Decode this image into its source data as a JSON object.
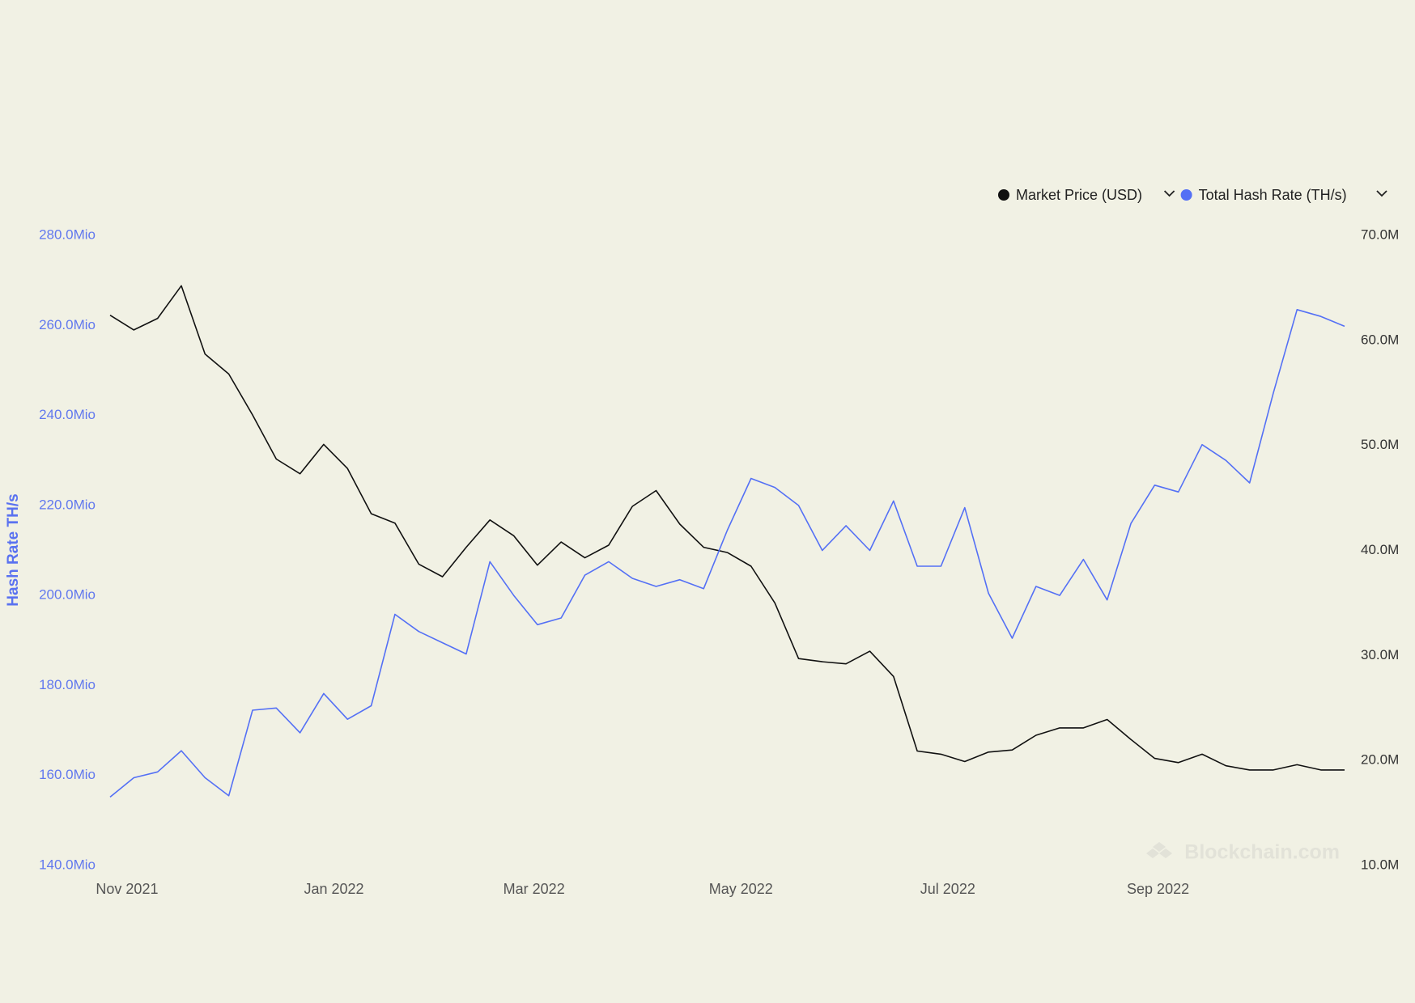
{
  "chart_data": {
    "type": "line",
    "watermark": "Blockchain.com",
    "y_label": "Hash Rate TH/s",
    "x": [
      "2021-10-27",
      "2021-11-03",
      "2021-11-10",
      "2021-11-17",
      "2021-11-24",
      "2021-12-01",
      "2021-12-08",
      "2021-12-15",
      "2021-12-22",
      "2021-12-29",
      "2022-01-05",
      "2022-01-12",
      "2022-01-19",
      "2022-01-26",
      "2022-02-02",
      "2022-02-09",
      "2022-02-16",
      "2022-02-23",
      "2022-03-02",
      "2022-03-09",
      "2022-03-16",
      "2022-03-23",
      "2022-03-30",
      "2022-04-06",
      "2022-04-13",
      "2022-04-20",
      "2022-04-27",
      "2022-05-04",
      "2022-05-11",
      "2022-05-18",
      "2022-05-25",
      "2022-06-01",
      "2022-06-08",
      "2022-06-15",
      "2022-06-22",
      "2022-06-29",
      "2022-07-06",
      "2022-07-13",
      "2022-07-20",
      "2022-07-27",
      "2022-08-03",
      "2022-08-10",
      "2022-08-17",
      "2022-08-24",
      "2022-08-31",
      "2022-09-07",
      "2022-09-14",
      "2022-09-21",
      "2022-09-28",
      "2022-10-05",
      "2022-10-12",
      "2022-10-19",
      "2022-10-26"
    ],
    "xlim": [
      "2021-10-27",
      "2022-10-26"
    ],
    "xticks": [
      {
        "value": "2021-11-01",
        "label": "Nov 2021"
      },
      {
        "value": "2022-01-01",
        "label": "Jan 2022"
      },
      {
        "value": "2022-03-01",
        "label": "Mar 2022"
      },
      {
        "value": "2022-05-01",
        "label": "May 2022"
      },
      {
        "value": "2022-07-01",
        "label": "Jul 2022"
      },
      {
        "value": "2022-09-01",
        "label": "Sep 2022"
      }
    ],
    "ylim": [
      140,
      280
    ],
    "yticks": [
      {
        "value": 140,
        "label": "140.0Mio"
      },
      {
        "value": 160,
        "label": "160.0Mio"
      },
      {
        "value": 180,
        "label": "180.0Mio"
      },
      {
        "value": 200,
        "label": "200.0Mio"
      },
      {
        "value": 220,
        "label": "220.0Mio"
      },
      {
        "value": 240,
        "label": "240.0Mio"
      },
      {
        "value": 260,
        "label": "260.0Mio"
      },
      {
        "value": 280,
        "label": "280.0Mio"
      }
    ],
    "y2lim": [
      10,
      70
    ],
    "y2ticks": [
      {
        "value": 10,
        "label": "10.0M"
      },
      {
        "value": 20,
        "label": "20.0M"
      },
      {
        "value": 30,
        "label": "30.0M"
      },
      {
        "value": 40,
        "label": "40.0M"
      },
      {
        "value": 50,
        "label": "50.0M"
      },
      {
        "value": 60,
        "label": "60.0M"
      },
      {
        "value": 70,
        "label": "70.0M"
      }
    ],
    "grid": false,
    "legend": "top-right",
    "series": [
      {
        "name": "Market Price (USD)",
        "color": "#111111",
        "axis": "y2",
        "values": [
          62.4,
          61.0,
          62.1,
          65.2,
          58.7,
          56.8,
          52.9,
          48.7,
          47.3,
          50.1,
          47.8,
          43.5,
          42.6,
          38.7,
          37.5,
          40.3,
          42.9,
          41.4,
          38.6,
          40.8,
          39.3,
          40.5,
          44.2,
          45.7,
          42.5,
          40.3,
          39.8,
          38.5,
          35.0,
          29.7,
          29.4,
          29.2,
          30.4,
          28.0,
          20.9,
          20.6,
          19.9,
          20.8,
          21.0,
          22.4,
          23.1,
          23.1,
          23.9,
          22.0,
          20.2,
          19.8,
          20.6,
          19.5,
          19.1,
          19.1,
          19.6,
          19.1,
          19.1
        ]
      },
      {
        "name": "Total Hash Rate (TH/s)",
        "color": "#5470f5",
        "values": [
          155.2,
          159.5,
          160.8,
          165.5,
          159.5,
          155.5,
          174.5,
          175.0,
          169.5,
          178.2,
          172.5,
          175.5,
          195.8,
          192.0,
          189.5,
          187.0,
          207.5,
          200.0,
          193.5,
          195.0,
          204.5,
          207.5,
          203.8,
          202.0,
          203.5,
          201.5,
          214.5,
          226.0,
          224.0,
          220.0,
          210.0,
          215.5,
          210.0,
          221.0,
          206.5,
          206.5,
          219.5,
          200.5,
          190.5,
          202.0,
          200.0,
          208.0,
          199.0,
          216.0,
          224.5,
          223.0,
          233.5,
          230.0,
          225.0,
          245.0,
          263.5,
          262.0,
          259.8
        ]
      }
    ]
  }
}
